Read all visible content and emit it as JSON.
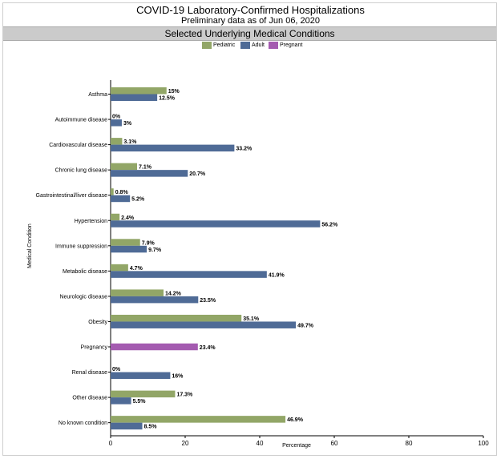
{
  "header": {
    "title": "COVID-19 Laboratory-Confirmed Hospitalizations",
    "subtitle": "Preliminary data as of Jun 06, 2020",
    "section": "Selected Underlying Medical Conditions"
  },
  "chart_data": {
    "type": "bar",
    "orientation": "horizontal",
    "categories": [
      "Asthma",
      "Autoimmune disease",
      "Cardiovascular disease",
      "Chronic lung disease",
      "Gastrointestinal/liver disease",
      "Hypertension",
      "Immune suppression",
      "Metabolic disease",
      "Neurologic disease",
      "Obesity",
      "Pregnancy",
      "Renal disease",
      "Other disease",
      "No known condition"
    ],
    "series": [
      {
        "name": "Pediatric",
        "color": "#92a667",
        "values": [
          15,
          0,
          3.1,
          7.1,
          0.8,
          2.4,
          7.9,
          4.7,
          14.2,
          35.1,
          null,
          0,
          17.3,
          46.9
        ],
        "labels": [
          "15%",
          "0%",
          "3.1%",
          "7.1%",
          "0.8%",
          "2.4%",
          "7.9%",
          "4.7%",
          "14.2%",
          "35.1%",
          "",
          "0%",
          "17.3%",
          "46.9%"
        ]
      },
      {
        "name": "Adult",
        "color": "#4f6b96",
        "values": [
          12.5,
          3,
          33.2,
          20.7,
          5.2,
          56.2,
          9.7,
          41.9,
          23.5,
          49.7,
          null,
          16,
          5.5,
          8.5
        ],
        "labels": [
          "12.5%",
          "3%",
          "33.2%",
          "20.7%",
          "5.2%",
          "56.2%",
          "9.7%",
          "41.9%",
          "23.5%",
          "49.7%",
          "",
          "16%",
          "5.5%",
          "8.5%"
        ]
      },
      {
        "name": "Pregnant",
        "color": "#a45bb0",
        "values": [
          null,
          null,
          null,
          null,
          null,
          null,
          null,
          null,
          null,
          null,
          23.4,
          null,
          null,
          null
        ],
        "labels": [
          "",
          "",
          "",
          "",
          "",
          "",
          "",
          "",
          "",
          "",
          "23.4%",
          "",
          "",
          ""
        ]
      }
    ],
    "xlabel": "Percentage",
    "ylabel": "Medical Condition",
    "xlim": [
      0,
      100
    ],
    "xticks": [
      0,
      20,
      40,
      60,
      80,
      100
    ],
    "grid": false,
    "legend": "top-center"
  }
}
